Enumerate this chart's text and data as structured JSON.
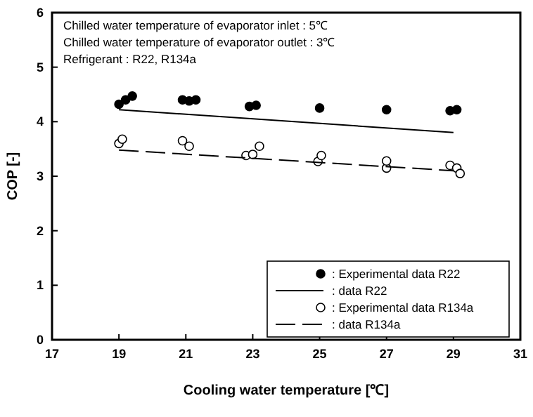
{
  "chart_data": {
    "type": "scatter",
    "xlabel": "Cooling water temperature [℃]",
    "ylabel": "COP [-]",
    "xlim": [
      17,
      31
    ],
    "xticks": [
      17,
      19,
      21,
      23,
      25,
      27,
      29,
      31
    ],
    "ylim": [
      0,
      6
    ],
    "yticks": [
      0,
      1,
      2,
      3,
      4,
      5,
      6
    ],
    "annotations": [
      "Chilled water temperature of evaporator inlet : 5℃",
      "Chilled water temperature of evaporator outlet : 3℃",
      "Refrigerant : R22, R134a"
    ],
    "legend": "bottom right",
    "series": [
      {
        "name": ": Experimental data R22",
        "color": "#000000",
        "marker": "circle",
        "x": [
          19,
          19.2,
          19.4,
          20.9,
          21.1,
          21.3,
          22.9,
          23.1,
          25,
          27,
          28.9,
          29.1
        ],
        "values": [
          4.32,
          4.4,
          4.47,
          4.4,
          4.38,
          4.4,
          4.28,
          4.3,
          4.25,
          4.22,
          4.2,
          4.22
        ]
      },
      {
        "name": ": data R22",
        "type": "line",
        "color": "#000000",
        "marker": "none",
        "line_style": "solid",
        "x": [
          19,
          29
        ],
        "values": [
          4.22,
          3.8
        ]
      },
      {
        "name": ": Experimental data R134a",
        "color": "#ffffff",
        "marker": "circle",
        "x": [
          19,
          19.1,
          20.9,
          21.1,
          22.8,
          23,
          23.2,
          24.95,
          25.05,
          27,
          27,
          28.9,
          29.1,
          29.2
        ],
        "values": [
          3.6,
          3.68,
          3.65,
          3.55,
          3.38,
          3.4,
          3.55,
          3.27,
          3.38,
          3.15,
          3.28,
          3.2,
          3.15,
          3.05
        ]
      },
      {
        "name": ": data R134a",
        "type": "line",
        "color": "#000000",
        "marker": "none",
        "line_style": "dashed",
        "x": [
          19,
          29
        ],
        "values": [
          3.48,
          3.1
        ]
      }
    ]
  }
}
